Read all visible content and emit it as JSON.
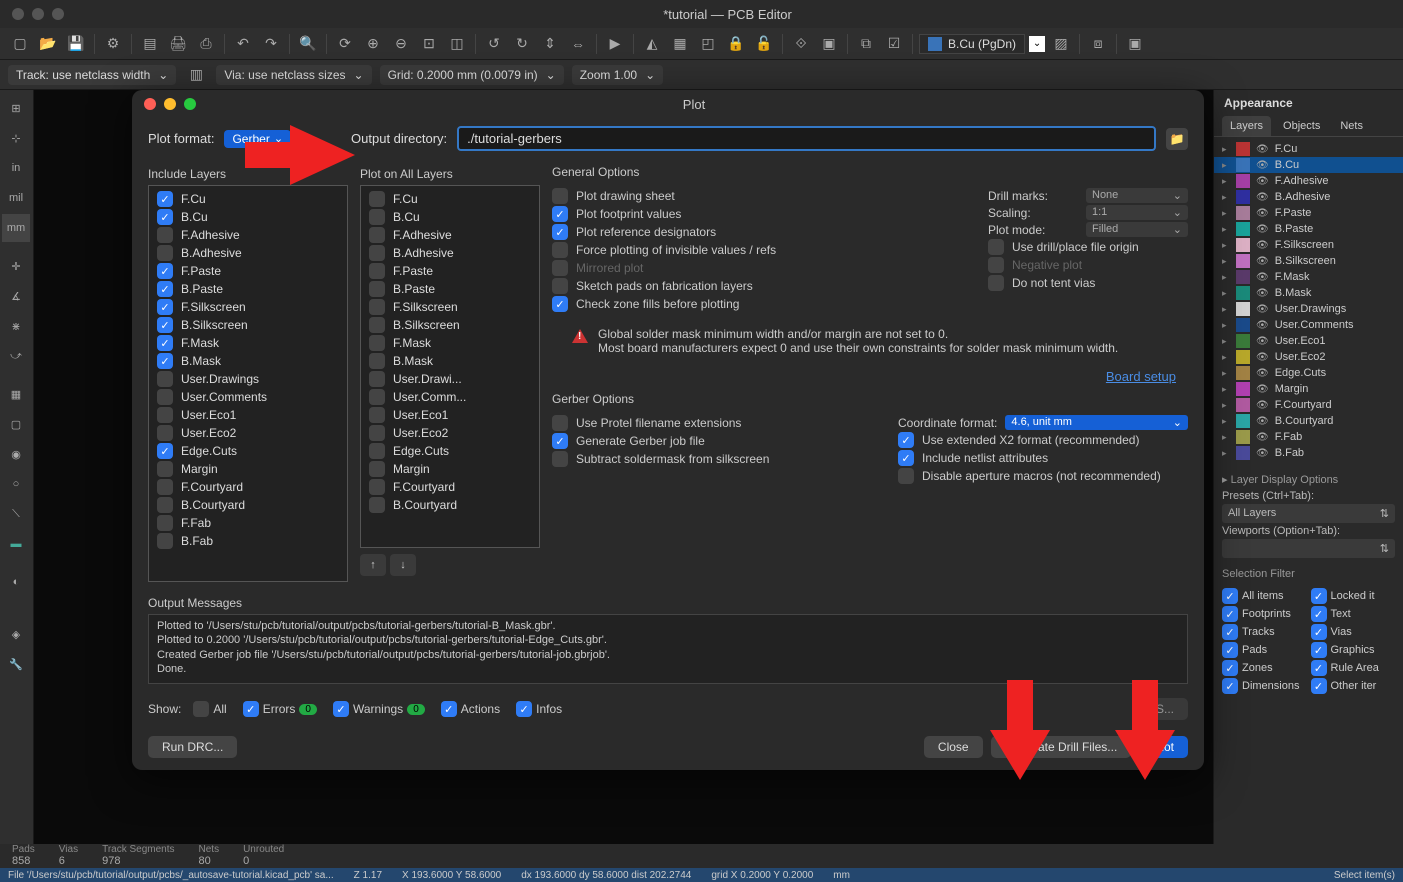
{
  "window": {
    "title": "*tutorial — PCB Editor"
  },
  "subtoolbar": {
    "track": "Track: use netclass width",
    "via": "Via: use netclass sizes",
    "grid": "Grid: 0.2000 mm (0.0079 in)",
    "zoom": "Zoom 1.00"
  },
  "layer_selector": {
    "label": "B.Cu (PgDn)"
  },
  "left_units": [
    "in",
    "mil",
    "mm"
  ],
  "appearance": {
    "title": "Appearance",
    "tabs": [
      "Layers",
      "Objects",
      "Nets"
    ],
    "layers": [
      {
        "name": "F.Cu",
        "color": "#ba3434",
        "active": false
      },
      {
        "name": "B.Cu",
        "color": "#3973b8",
        "active": true
      },
      {
        "name": "F.Adhesive",
        "color": "#a53fa5",
        "active": false
      },
      {
        "name": "B.Adhesive",
        "color": "#2f2fa0",
        "active": false
      },
      {
        "name": "F.Paste",
        "color": "#a77c9a",
        "active": false
      },
      {
        "name": "B.Paste",
        "color": "#1aa39a",
        "active": false
      },
      {
        "name": "F.Silkscreen",
        "color": "#dcb0c4",
        "active": false
      },
      {
        "name": "B.Silkscreen",
        "color": "#c070c0",
        "active": false
      },
      {
        "name": "F.Mask",
        "color": "#5a3a6a",
        "active": false
      },
      {
        "name": "B.Mask",
        "color": "#1a8a7a",
        "active": false
      },
      {
        "name": "User.Drawings",
        "color": "#d2d2d2",
        "active": false
      },
      {
        "name": "User.Comments",
        "color": "#1a4a8a",
        "active": false
      },
      {
        "name": "User.Eco1",
        "color": "#3a7a3a",
        "active": false
      },
      {
        "name": "User.Eco2",
        "color": "#b8a82a",
        "active": false
      },
      {
        "name": "Edge.Cuts",
        "color": "#a28244",
        "active": false
      },
      {
        "name": "Margin",
        "color": "#b040b0",
        "active": false
      },
      {
        "name": "F.Courtyard",
        "color": "#b05aa0",
        "active": false
      },
      {
        "name": "B.Courtyard",
        "color": "#2aa5a5",
        "active": false
      },
      {
        "name": "F.Fab",
        "color": "#9a9a4a",
        "active": false
      },
      {
        "name": "B.Fab",
        "color": "#4a4a9a",
        "active": false
      }
    ],
    "display_opts": "Layer Display Options",
    "presets_lbl": "Presets (Ctrl+Tab):",
    "presets_val": "All Layers",
    "viewports_lbl": "Viewports (Option+Tab):",
    "sel_filter_title": "Selection Filter",
    "sel_filter": [
      {
        "l": "All items",
        "c": true
      },
      {
        "l": "Locked it",
        "c": true
      },
      {
        "l": "Footprints",
        "c": true
      },
      {
        "l": "Text",
        "c": true
      },
      {
        "l": "Tracks",
        "c": true
      },
      {
        "l": "Vias",
        "c": true
      },
      {
        "l": "Pads",
        "c": true
      },
      {
        "l": "Graphics",
        "c": true
      },
      {
        "l": "Zones",
        "c": true
      },
      {
        "l": "Rule Area",
        "c": true
      },
      {
        "l": "Dimensions",
        "c": true
      },
      {
        "l": "Other iter",
        "c": true
      }
    ]
  },
  "plot": {
    "title": "Plot",
    "format_lbl": "Plot format:",
    "format_val": "Gerber",
    "outdir_lbl": "Output directory:",
    "outdir_val": "./tutorial-gerbers",
    "include_title": "Include Layers",
    "plotall_title": "Plot on All Layers",
    "include": [
      {
        "n": "F.Cu",
        "c": true
      },
      {
        "n": "B.Cu",
        "c": true
      },
      {
        "n": "F.Adhesive",
        "c": false
      },
      {
        "n": "B.Adhesive",
        "c": false
      },
      {
        "n": "F.Paste",
        "c": true
      },
      {
        "n": "B.Paste",
        "c": true
      },
      {
        "n": "F.Silkscreen",
        "c": true
      },
      {
        "n": "B.Silkscreen",
        "c": true
      },
      {
        "n": "F.Mask",
        "c": true
      },
      {
        "n": "B.Mask",
        "c": true
      },
      {
        "n": "User.Drawings",
        "c": false
      },
      {
        "n": "User.Comments",
        "c": false
      },
      {
        "n": "User.Eco1",
        "c": false
      },
      {
        "n": "User.Eco2",
        "c": false
      },
      {
        "n": "Edge.Cuts",
        "c": true
      },
      {
        "n": "Margin",
        "c": false
      },
      {
        "n": "F.Courtyard",
        "c": false
      },
      {
        "n": "B.Courtyard",
        "c": false
      },
      {
        "n": "F.Fab",
        "c": false
      },
      {
        "n": "B.Fab",
        "c": false
      }
    ],
    "plotall": [
      {
        "n": "F.Cu",
        "c": false
      },
      {
        "n": "B.Cu",
        "c": false
      },
      {
        "n": "F.Adhesive",
        "c": false
      },
      {
        "n": "B.Adhesive",
        "c": false
      },
      {
        "n": "F.Paste",
        "c": false
      },
      {
        "n": "B.Paste",
        "c": false
      },
      {
        "n": "F.Silkscreen",
        "c": false
      },
      {
        "n": "B.Silkscreen",
        "c": false
      },
      {
        "n": "F.Mask",
        "c": false
      },
      {
        "n": "B.Mask",
        "c": false
      },
      {
        "n": "User.Drawi...",
        "c": false
      },
      {
        "n": "User.Comm...",
        "c": false
      },
      {
        "n": "User.Eco1",
        "c": false
      },
      {
        "n": "User.Eco2",
        "c": false
      },
      {
        "n": "Edge.Cuts",
        "c": false
      },
      {
        "n": "Margin",
        "c": false
      },
      {
        "n": "F.Courtyard",
        "c": false
      },
      {
        "n": "B.Courtyard",
        "c": false
      }
    ],
    "gen_title": "General Options",
    "gen_opts": [
      {
        "n": "Plot drawing sheet",
        "c": false
      },
      {
        "n": "Plot footprint values",
        "c": true
      },
      {
        "n": "Plot reference designators",
        "c": true
      },
      {
        "n": "Force plotting of invisible values / refs",
        "c": false
      },
      {
        "n": "Mirrored plot",
        "c": false,
        "d": true
      },
      {
        "n": "Sketch pads on fabrication layers",
        "c": false
      },
      {
        "n": "Check zone fills before plotting",
        "c": true
      }
    ],
    "gen_right": [
      {
        "l": "Drill marks:",
        "v": "None",
        "blue": false
      },
      {
        "l": "Scaling:",
        "v": "1:1",
        "blue": false
      },
      {
        "l": "Plot mode:",
        "v": "Filled",
        "blue": false
      }
    ],
    "gen_right2": [
      {
        "n": "Use drill/place file origin",
        "c": false
      },
      {
        "n": "Negative plot",
        "c": false,
        "d": true
      },
      {
        "n": "Do not tent vias",
        "c": false
      }
    ],
    "warning": "Global solder mask minimum width and/or margin are not set to 0.",
    "warning2": "Most board manufacturers expect 0 and use their own constraints for solder mask minimum width.",
    "board_setup": "Board setup",
    "gerber_title": "Gerber Options",
    "gerber_left": [
      {
        "n": "Use Protel filename extensions",
        "c": false
      },
      {
        "n": "Generate Gerber job file",
        "c": true
      },
      {
        "n": "Subtract soldermask from silkscreen",
        "c": false
      }
    ],
    "coord_lbl": "Coordinate format:",
    "coord_val": "4.6, unit mm",
    "gerber_right": [
      {
        "n": "Use extended X2 format (recommended)",
        "c": true
      },
      {
        "n": "Include netlist attributes",
        "c": true
      },
      {
        "n": "Disable aperture macros (not recommended)",
        "c": false
      }
    ],
    "out_title": "Output Messages",
    "out_lines": [
      "Plotted to '/Users/stu/pcb/tutorial/output/pcbs/tutorial-gerbers/tutorial-B_Mask.gbr'.",
      "Plotted to 0.2000 '/Users/stu/pcb/tutorial/output/pcbs/tutorial-gerbers/tutorial-Edge_Cuts.gbr'.",
      "Created Gerber job file '/Users/stu/pcb/tutorial/output/pcbs/tutorial-gerbers/tutorial-job.gbrjob'.",
      "Done."
    ],
    "show_lbl": "Show:",
    "show": [
      {
        "n": "All",
        "c": false
      },
      {
        "n": "Errors",
        "c": true,
        "b": "0"
      },
      {
        "n": "Warnings",
        "c": true,
        "b": "0"
      },
      {
        "n": "Actions",
        "c": true
      },
      {
        "n": "Infos",
        "c": true
      }
    ],
    "save_btn": "S...",
    "run_drc": "Run DRC...",
    "close": "Close",
    "gen_drill": "Generate Drill Files...",
    "plot_btn": "Plot"
  },
  "status": {
    "pads_l": "Pads",
    "pads_v": "858",
    "vias_l": "Vias",
    "vias_v": "6",
    "tracks_l": "Track Segments",
    "tracks_v": "978",
    "nets_l": "Nets",
    "nets_v": "80",
    "unrouted_l": "Unrouted",
    "unrouted_v": "0"
  },
  "status2": {
    "file": "File '/Users/stu/pcb/tutorial/output/pcbs/_autosave-tutorial.kicad_pcb' sa...",
    "z": "Z 1.17",
    "xy": "X 193.6000  Y 58.6000",
    "dxy": "dx 193.6000  dy 58.6000  dist 202.2744",
    "grid": "grid X 0.2000  Y 0.2000",
    "units": "mm",
    "sel": "Select item(s)"
  }
}
